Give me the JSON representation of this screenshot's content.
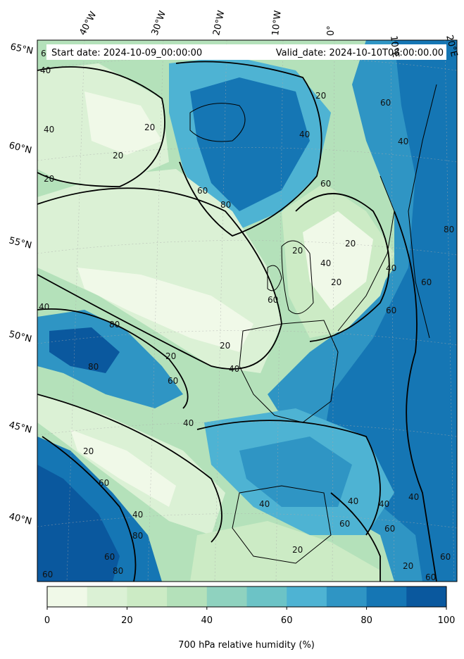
{
  "header": {
    "start_date": "Start date: 2024-10-09_00:00:00",
    "valid_date": "Valid_date: 2024-10-10T08:00:00.00"
  },
  "lat_labels": [
    "65°N",
    "60°N",
    "55°N",
    "50°N",
    "45°N",
    "40°N"
  ],
  "lon_labels": [
    "40°W",
    "30°W",
    "20°W",
    "10°W",
    "0°",
    "10°E",
    "20°E"
  ],
  "contour_labels": [
    "20",
    "40",
    "60",
    "80"
  ],
  "colorbar": {
    "title": "700 hPa relative humidity (%)",
    "ticks": [
      "0",
      "20",
      "40",
      "60",
      "80",
      "100"
    ],
    "levels": [
      0,
      10,
      20,
      30,
      40,
      50,
      60,
      70,
      80,
      90,
      100
    ],
    "colors": [
      "#f0f9e8",
      "#dbf1d5",
      "#ccebc5",
      "#b4e1ba",
      "#8fd2bf",
      "#6cc3c6",
      "#4eb3d3",
      "#2f95c4",
      "#1576b4",
      "#0a589e"
    ]
  }
}
